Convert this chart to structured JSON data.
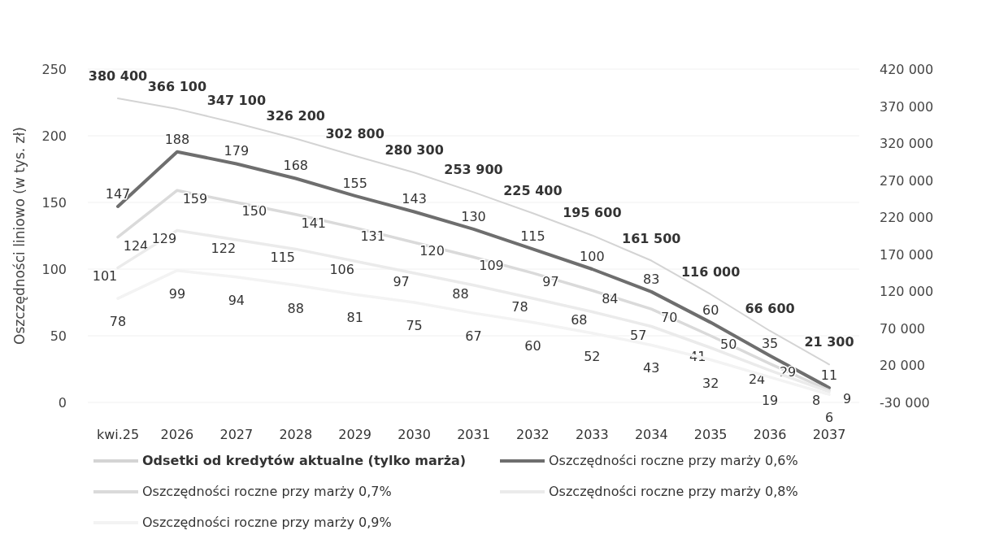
{
  "chart_data": {
    "type": "line",
    "ylabel": "Oszczędności liniowo (w tys. zł)",
    "categories": [
      "kwi.25",
      "2026",
      "2027",
      "2028",
      "2029",
      "2030",
      "2031",
      "2032",
      "2033",
      "2034",
      "2035",
      "2036",
      "2037"
    ],
    "series": [
      {
        "name": "Odsetki od kredytów aktualne (tylko marża)",
        "color": "#d4d4d4",
        "axis": "y2",
        "values": [
          380400,
          366100,
          347100,
          326200,
          302800,
          280300,
          253900,
          225400,
          195600,
          161500,
          116000,
          66600,
          21300
        ],
        "value_labels": [
          "380 400",
          "366 100",
          "347 100",
          "326 200",
          "302 800",
          "280 300",
          "253 900",
          "225 400",
          "195 600",
          "161 500",
          "116 000",
          "66 600",
          "21 300"
        ]
      },
      {
        "name": "Oszczędności roczne przy marży 0,6%",
        "color": "#6e6e6e",
        "values": [
          147,
          188,
          179,
          168,
          155,
          143,
          130,
          115,
          100,
          83,
          60,
          35,
          11
        ]
      },
      {
        "name": "Oszczędności roczne przy marży 0,7%",
        "color": "#dadada",
        "values": [
          124,
          159,
          150,
          141,
          131,
          120,
          109,
          97,
          84,
          70,
          50,
          29,
          9
        ]
      },
      {
        "name": "Oszczędności roczne przy marży 0,8%",
        "color": "#ebebeb",
        "values": [
          101,
          129,
          122,
          115,
          106,
          97,
          88,
          78,
          68,
          57,
          41,
          24,
          8
        ]
      },
      {
        "name": "Oszczędności roczne przy marży 0,9%",
        "color": "#f3f3f3",
        "values": [
          78,
          99,
          94,
          88,
          81,
          75,
          67,
          60,
          52,
          43,
          32,
          19,
          6
        ]
      }
    ],
    "ylim": [
      0,
      250
    ],
    "yticks": [
      0,
      50,
      100,
      150,
      200,
      250
    ],
    "y2lim": [
      -30000,
      420000
    ],
    "y2ticks": [
      {
        "value": -30000,
        "label": "-30 000"
      },
      {
        "value": 20000,
        "label": "20 000"
      },
      {
        "value": 70000,
        "label": "70 000"
      },
      {
        "value": 120000,
        "label": "120 000"
      },
      {
        "value": 170000,
        "label": "170 000"
      },
      {
        "value": 220000,
        "label": "220 000"
      },
      {
        "value": 270000,
        "label": "270 000"
      },
      {
        "value": 320000,
        "label": "320 000"
      },
      {
        "value": 370000,
        "label": "370 000"
      },
      {
        "value": 420000,
        "label": "420 000"
      }
    ],
    "grid": "y",
    "legend": "bottom",
    "data_labels": true,
    "marker": "none",
    "line_style": "solid"
  }
}
